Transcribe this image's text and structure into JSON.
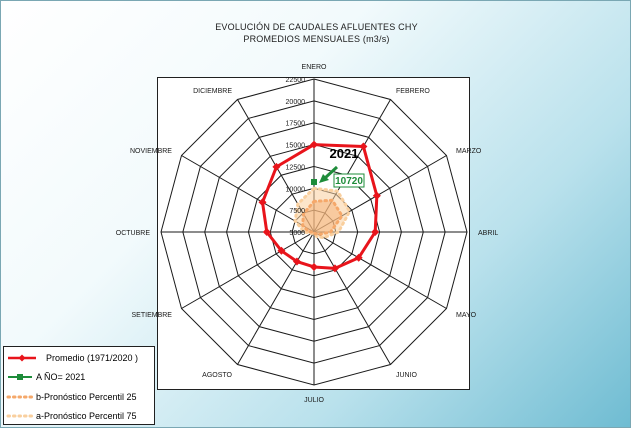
{
  "titles": {
    "line1": "EVOLUCIÓN DE CAUDALES AFLUENTES CHY",
    "line2": "PROMEDIOS MENSUALES (m3/s)"
  },
  "chart_data": {
    "type": "radar",
    "title": "EVOLUCIÓN DE CAUDALES AFLUENTES CHY",
    "subtitle": "PROMEDIOS MENSUALES (m3/s)",
    "categories": [
      "ENERO",
      "FEBRERO",
      "MARZO",
      "ABRIL",
      "MAYO",
      "JUNIO",
      "JULIO",
      "AGOSTO",
      "SETIEMBRE",
      "OCTUBRE",
      "NOVIEMBRE",
      "DICIEMBRE"
    ],
    "radial_ticks": [
      "5000",
      "7500",
      "10000",
      "12500",
      "15000",
      "17500",
      "20000",
      "22500"
    ],
    "rlim": [
      5000,
      22500
    ],
    "series": [
      {
        "name": "Promedio (1971/2020 )",
        "color": "#e8141b",
        "marker": "diamond",
        "values": [
          15000,
          16300,
          13300,
          12000,
          10900,
          9800,
          9000,
          8900,
          9300,
          10400,
          11800,
          13600
        ]
      },
      {
        "name": "A ÑO= 2021",
        "color": "#1e8c3a",
        "marker": "square",
        "values": [
          10720,
          null,
          null,
          null,
          null,
          null,
          null,
          null,
          null,
          null,
          null,
          null
        ]
      },
      {
        "name": "b-Pronóstico Percentil 25",
        "color": "#f5a86a",
        "marker": "dots",
        "values": [
          8500,
          9200,
          8700,
          6900,
          5600,
          5200,
          5000,
          5000,
          5000,
          5600,
          6500,
          7400
        ]
      },
      {
        "name": "a-Pronóstico Percentil 75",
        "color": "#f9cf9e",
        "marker": "dots",
        "values": [
          10000,
          10400,
          9700,
          7800,
          6300,
          5600,
          5200,
          5200,
          5300,
          6100,
          7500,
          8700
        ]
      }
    ],
    "annotations": [
      {
        "text": "2021",
        "color": "#000000"
      },
      {
        "text": "10720",
        "color": "#1e8c3a"
      }
    ],
    "legend_position": "bottom-left"
  }
}
